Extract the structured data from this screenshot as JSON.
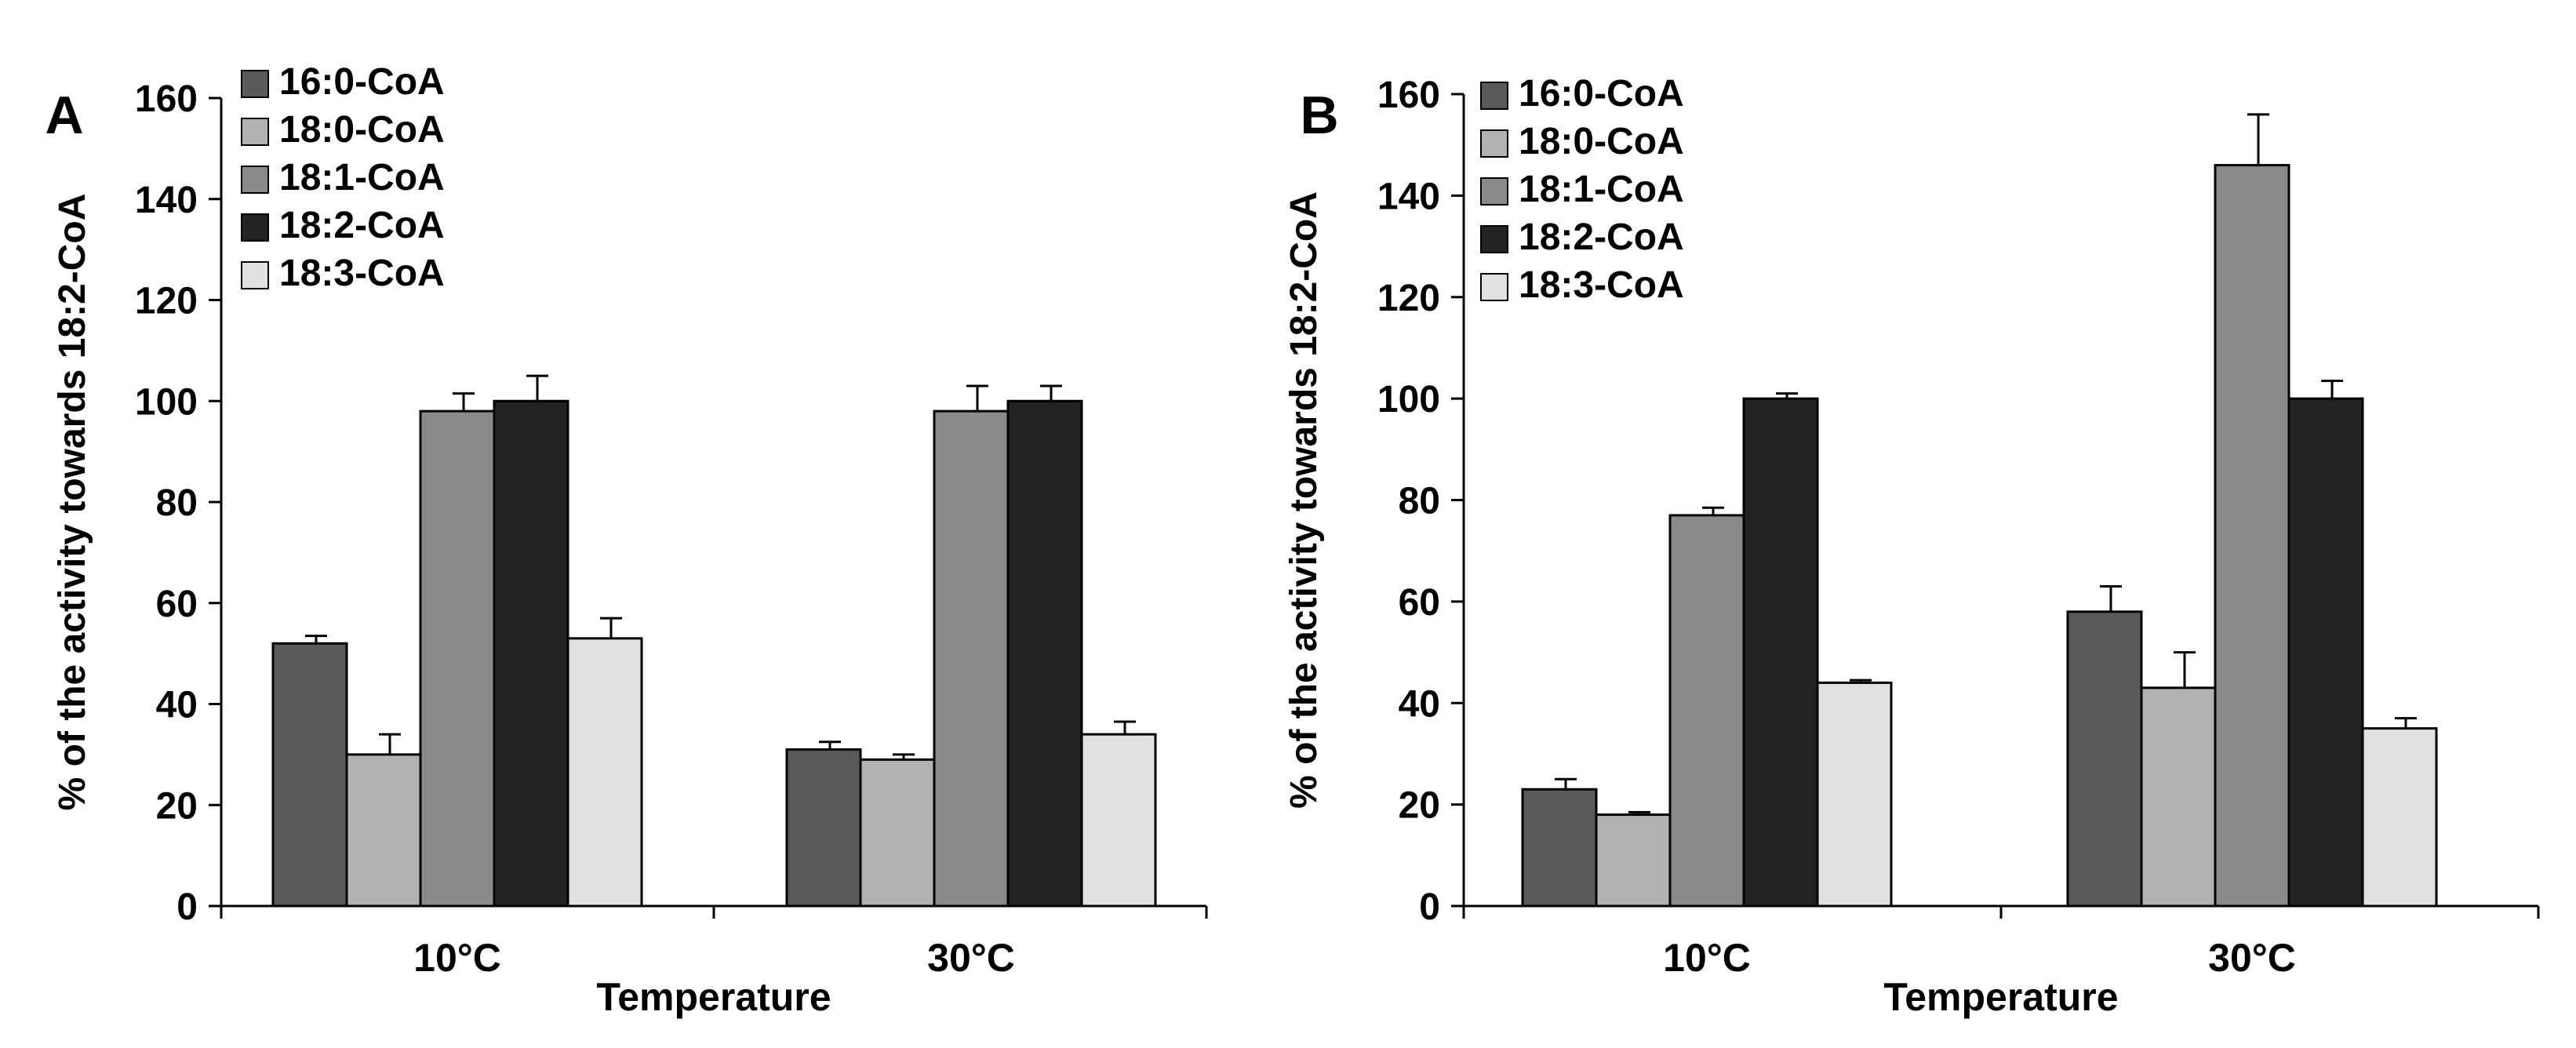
{
  "chart_data": [
    {
      "type": "bar",
      "panel_label": "A",
      "xlabel": "Temperature",
      "ylabel": "% of the activity  towards 18:2-CoA",
      "ylim": [
        0,
        160
      ],
      "yticks": [
        0,
        20,
        40,
        60,
        80,
        100,
        120,
        140,
        160
      ],
      "categories": [
        "10°C",
        "30°C"
      ],
      "legend_position": "top-left",
      "series": [
        {
          "name": "16:0-CoA",
          "color": "#5a5a5a",
          "values": [
            52,
            31
          ],
          "errors": [
            1.5,
            1.5
          ]
        },
        {
          "name": "18:0-CoA",
          "color": "#b2b2b2",
          "values": [
            30,
            29
          ],
          "errors": [
            4,
            1
          ]
        },
        {
          "name": "18:1-CoA",
          "color": "#8a8a8a",
          "values": [
            98,
            98
          ],
          "errors": [
            3.5,
            5
          ]
        },
        {
          "name": "18:2-CoA",
          "color": "#232323",
          "values": [
            100,
            100
          ],
          "errors": [
            5,
            3
          ]
        },
        {
          "name": "18:3-CoA",
          "color": "#e0e0e0",
          "values": [
            53,
            34
          ],
          "errors": [
            4,
            2.5
          ]
        }
      ]
    },
    {
      "type": "bar",
      "panel_label": "B",
      "xlabel": "Temperature",
      "ylabel": "% of the activity  towards 18:2-CoA",
      "ylim": [
        0,
        160
      ],
      "yticks": [
        0,
        20,
        40,
        60,
        80,
        100,
        120,
        140,
        160
      ],
      "categories": [
        "10°C",
        "30°C"
      ],
      "legend_position": "top-left",
      "series": [
        {
          "name": "16:0-CoA",
          "color": "#5a5a5a",
          "values": [
            23,
            58
          ],
          "errors": [
            2,
            5
          ]
        },
        {
          "name": "18:0-CoA",
          "color": "#b2b2b2",
          "values": [
            18,
            43
          ],
          "errors": [
            0.5,
            7
          ]
        },
        {
          "name": "18:1-CoA",
          "color": "#8a8a8a",
          "values": [
            77,
            146
          ],
          "errors": [
            1.5,
            10
          ]
        },
        {
          "name": "18:2-CoA",
          "color": "#232323",
          "values": [
            100,
            100
          ],
          "errors": [
            1,
            3.5
          ]
        },
        {
          "name": "18:3-CoA",
          "color": "#e0e0e0",
          "values": [
            44,
            35
          ],
          "errors": [
            0.5,
            2
          ]
        }
      ]
    }
  ]
}
